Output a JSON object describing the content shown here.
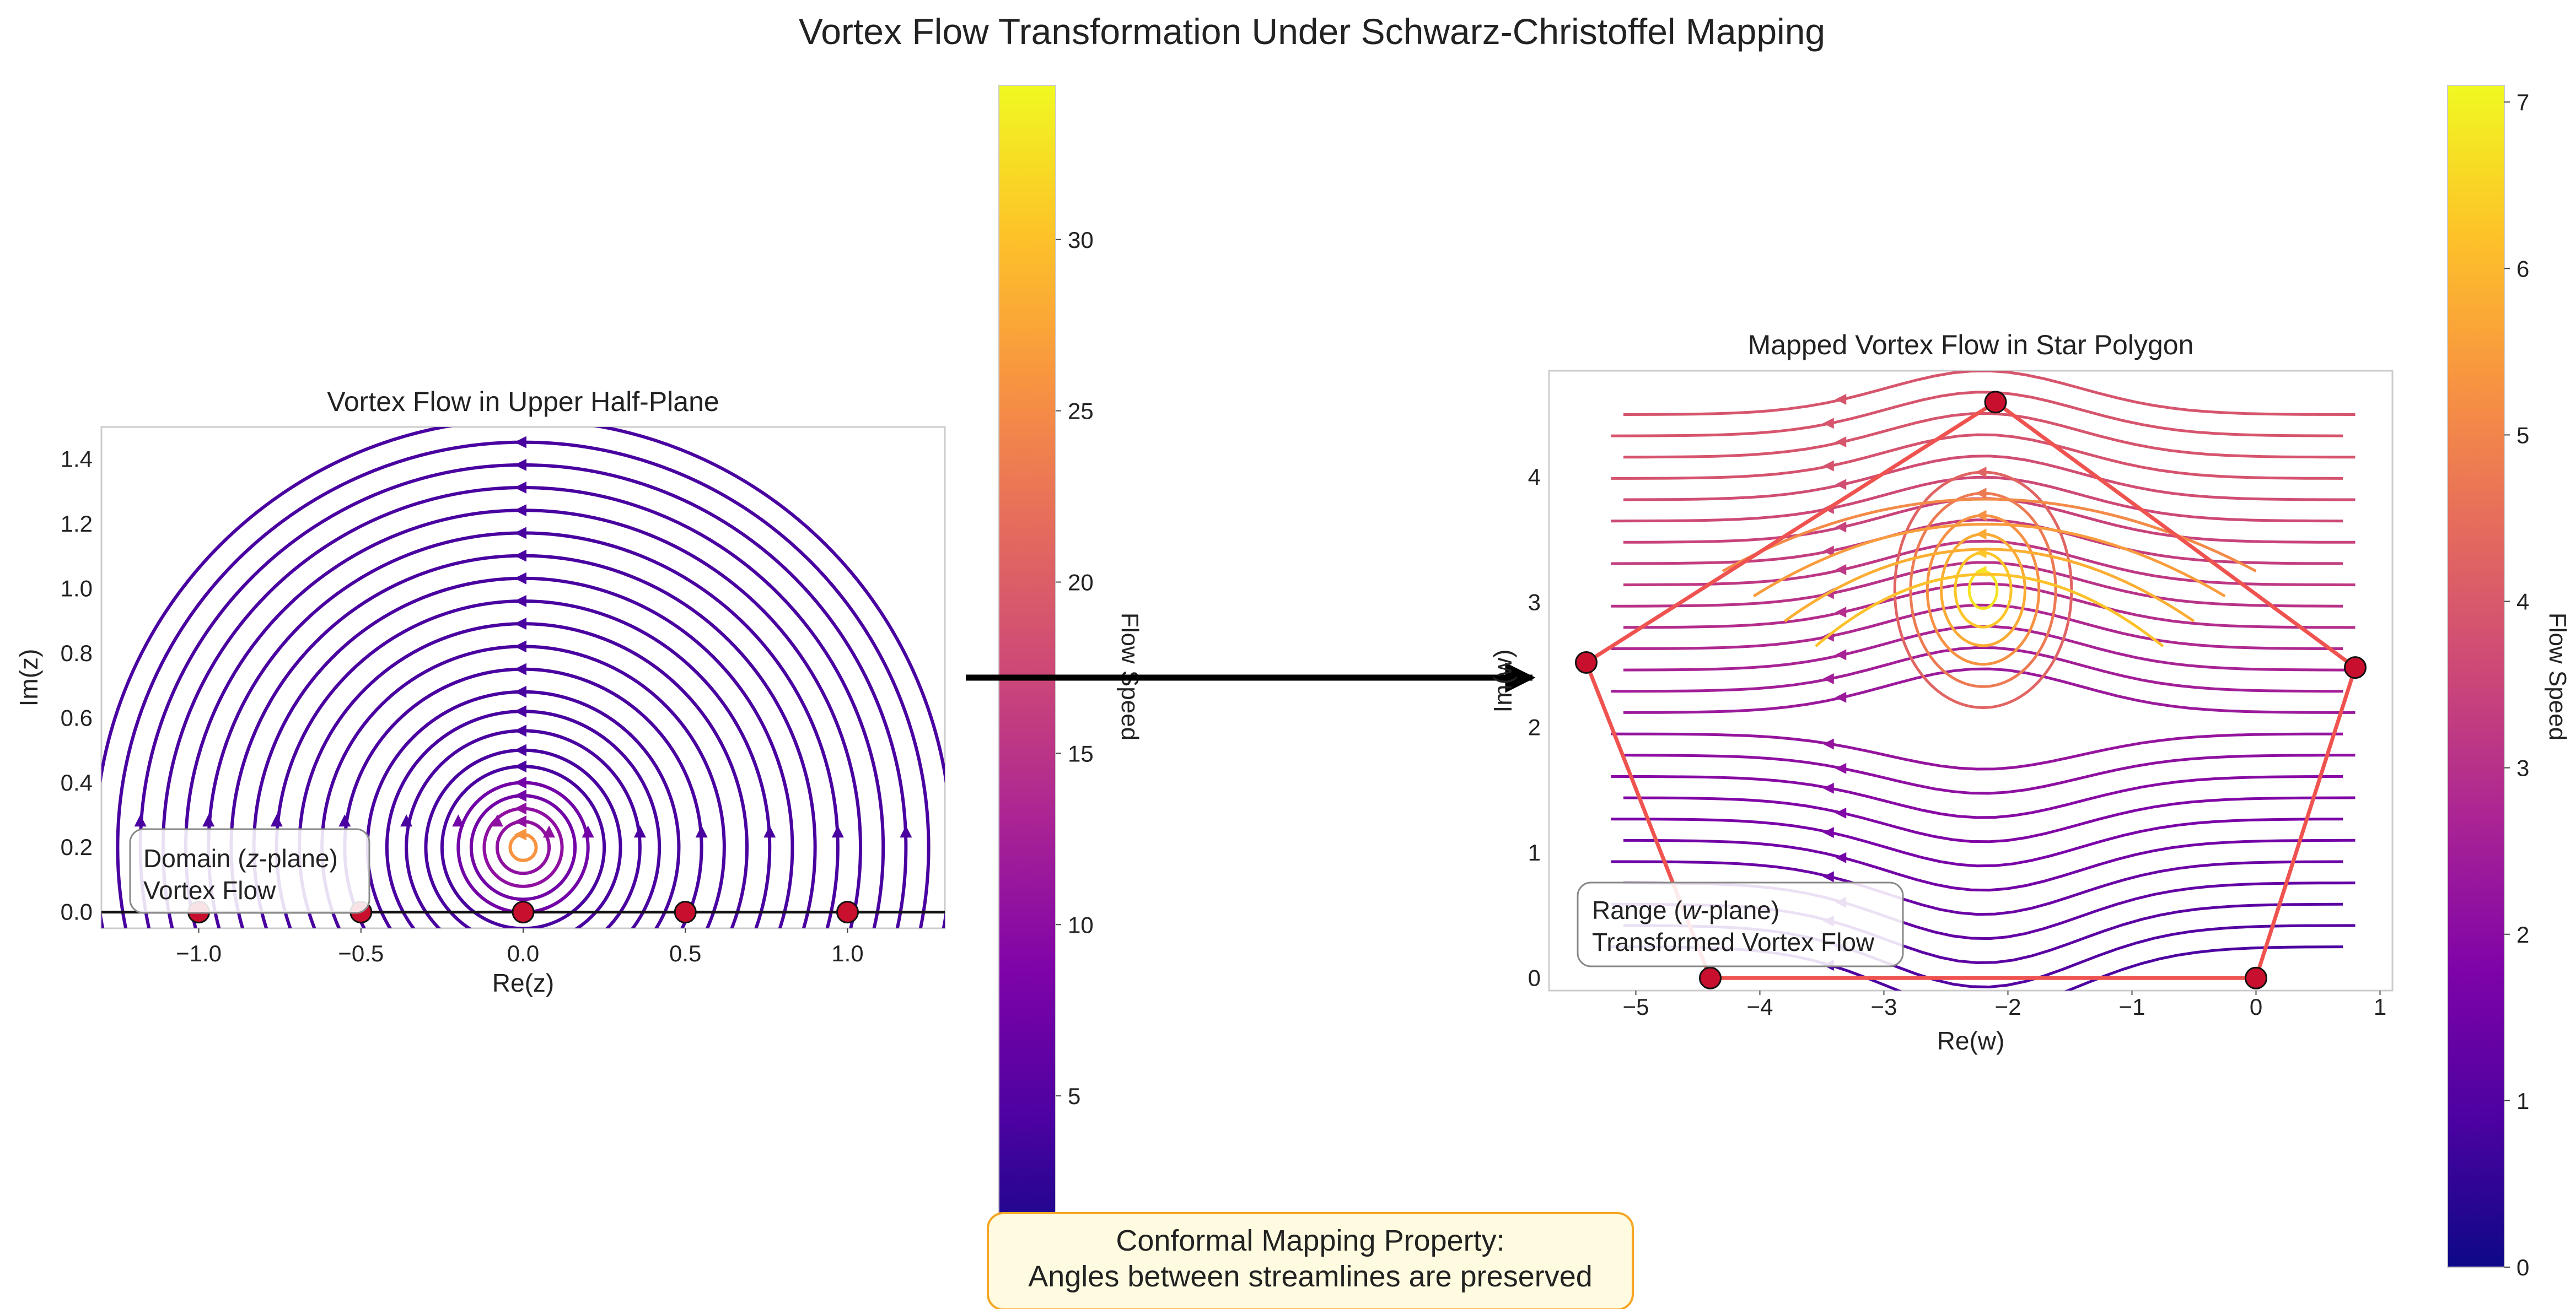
{
  "figure": {
    "title": "Vortex Flow Transformation Under Schwarz-Christoffel Mapping",
    "note_line1": "Conformal Mapping Property:",
    "note_line2": "Angles between streamlines are preserved",
    "colormap": "plasma",
    "colors": {
      "polygon_edge": "#ef5350",
      "vertex_fill": "#c8102e",
      "note_bg": "#fffbe0",
      "note_edge": "#f5a623",
      "axis_frame": "#cccccc"
    }
  },
  "chart_data": [
    {
      "type": "streamplot",
      "title": "Vortex Flow in Upper Half-Plane",
      "xlabel": "Re(z)",
      "ylabel": "Im(z)",
      "xlim": [
        -1.3,
        1.3
      ],
      "ylim": [
        -0.05,
        1.5
      ],
      "xticks": [
        "−1.0",
        "−0.5",
        "0.0",
        "0.5",
        "1.0"
      ],
      "xtick_values": [
        -1.0,
        -0.5,
        0.0,
        0.5,
        1.0
      ],
      "yticks": [
        "0.0",
        "0.2",
        "0.4",
        "0.6",
        "0.8",
        "1.0",
        "1.2",
        "1.4"
      ],
      "ytick_values": [
        0.0,
        0.2,
        0.4,
        0.6,
        0.8,
        1.0,
        1.2,
        1.4
      ],
      "vortex_center": [
        0.0,
        0.2
      ],
      "boundary_line_y": 0.0,
      "prevertices": [
        -1.0,
        -0.5,
        0.0,
        0.5,
        1.0
      ],
      "annotation_line1": "Domain (",
      "annotation_var": "z",
      "annotation_line1_end": "-plane)",
      "annotation_line2": "Vortex Flow",
      "colorbar": {
        "label": "Flow Speed",
        "range": [
          0,
          34.5
        ],
        "ticks": [
          "5",
          "10",
          "15",
          "20",
          "25",
          "30"
        ],
        "tick_values": [
          5,
          10,
          15,
          20,
          25,
          30
        ]
      },
      "grid": false,
      "legend": "none"
    },
    {
      "type": "streamplot",
      "title": "Mapped Vortex Flow in Star Polygon",
      "xlabel": "Re(w)",
      "ylabel": "Im(w)",
      "xlim": [
        -5.7,
        1.1
      ],
      "ylim": [
        -0.1,
        4.85
      ],
      "xticks": [
        "−5",
        "−4",
        "−3",
        "−2",
        "−1",
        "0",
        "1"
      ],
      "xtick_values": [
        -5,
        -4,
        -3,
        -2,
        -1,
        0,
        1
      ],
      "yticks": [
        "0",
        "1",
        "2",
        "3",
        "4"
      ],
      "ytick_values": [
        0,
        1,
        2,
        3,
        4
      ],
      "polygon_vertices": [
        [
          -4.4,
          0.0
        ],
        [
          0.0,
          0.0
        ],
        [
          0.8,
          2.48
        ],
        [
          -2.1,
          4.6
        ],
        [
          -5.4,
          2.52
        ]
      ],
      "vortex_center": [
        -2.2,
        3.1
      ],
      "annotation_line1": "Range (",
      "annotation_var": "w",
      "annotation_line1_end": "-plane)",
      "annotation_line2": "Transformed Vortex Flow",
      "colorbar": {
        "label": "Flow Speed",
        "range": [
          0,
          7.1
        ],
        "ticks": [
          "0",
          "1",
          "2",
          "3",
          "4",
          "5",
          "6",
          "7"
        ],
        "tick_values": [
          0,
          1,
          2,
          3,
          4,
          5,
          6,
          7
        ]
      },
      "grid": false,
      "legend": "none"
    }
  ]
}
